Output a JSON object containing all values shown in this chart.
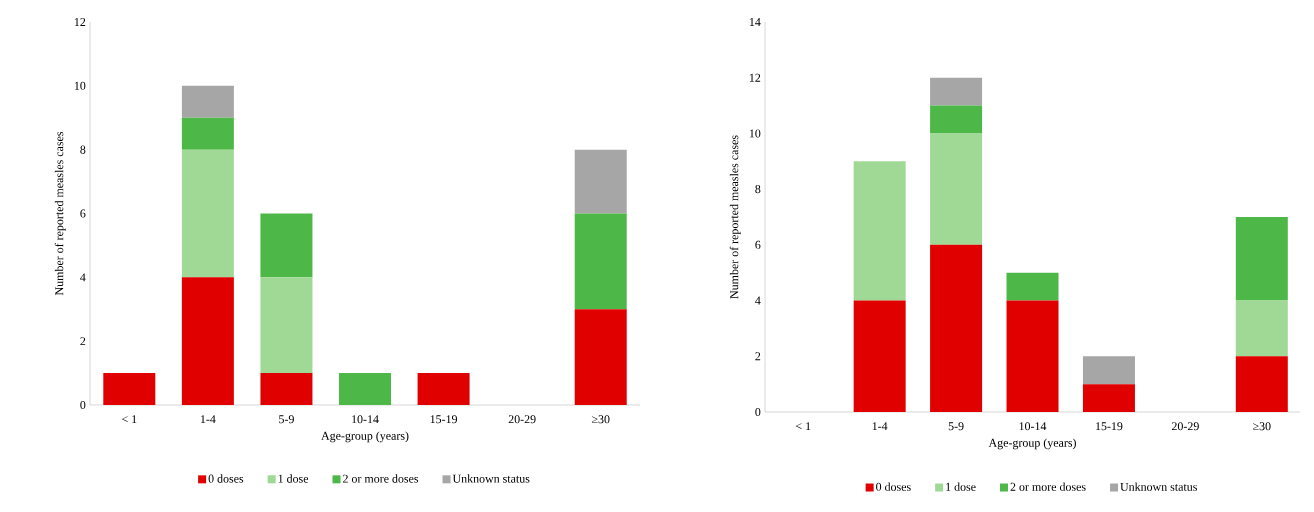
{
  "chart_data": [
    {
      "type": "bar",
      "stacked": true,
      "xlabel": "Age-group (years)",
      "ylabel": "Number of reported measles cases",
      "categories": [
        "< 1",
        "1-4",
        "5-9",
        "10-14",
        "15-19",
        "20-29",
        "≥30"
      ],
      "ylim": [
        0,
        12
      ],
      "yticks": [
        0,
        2,
        4,
        6,
        8,
        10,
        12
      ],
      "legend": "bottom",
      "series": [
        {
          "name": "0 doses",
          "color": "#e00000",
          "values": [
            1,
            4,
            1,
            0,
            1,
            0,
            3
          ]
        },
        {
          "name": "1 dose",
          "color": "#a0d995",
          "values": [
            0,
            4,
            3,
            0,
            0,
            0,
            0
          ]
        },
        {
          "name": "2 or more doses",
          "color": "#4db848",
          "values": [
            0,
            1,
            2,
            1,
            0,
            0,
            3
          ]
        },
        {
          "name": "Unknown status",
          "color": "#a6a6a6",
          "values": [
            0,
            1,
            0,
            0,
            0,
            0,
            2
          ]
        }
      ]
    },
    {
      "type": "bar",
      "stacked": true,
      "xlabel": "Age-group (years)",
      "ylabel": "Number of reported measles cases",
      "categories": [
        "< 1",
        "1-4",
        "5-9",
        "10-14",
        "15-19",
        "20-29",
        "≥30"
      ],
      "ylim": [
        0,
        14
      ],
      "yticks": [
        0,
        2,
        4,
        6,
        8,
        10,
        12,
        14
      ],
      "legend": "bottom",
      "series": [
        {
          "name": "0 doses",
          "color": "#e00000",
          "values": [
            0,
            4,
            6,
            4,
            1,
            0,
            2
          ]
        },
        {
          "name": "1 dose",
          "color": "#a0d995",
          "values": [
            0,
            5,
            4,
            0,
            0,
            0,
            2
          ]
        },
        {
          "name": "2 or more doses",
          "color": "#4db848",
          "values": [
            0,
            0,
            1,
            1,
            0,
            0,
            3
          ]
        },
        {
          "name": "Unknown status",
          "color": "#a6a6a6",
          "values": [
            0,
            0,
            1,
            0,
            1,
            0,
            0
          ]
        }
      ]
    }
  ]
}
